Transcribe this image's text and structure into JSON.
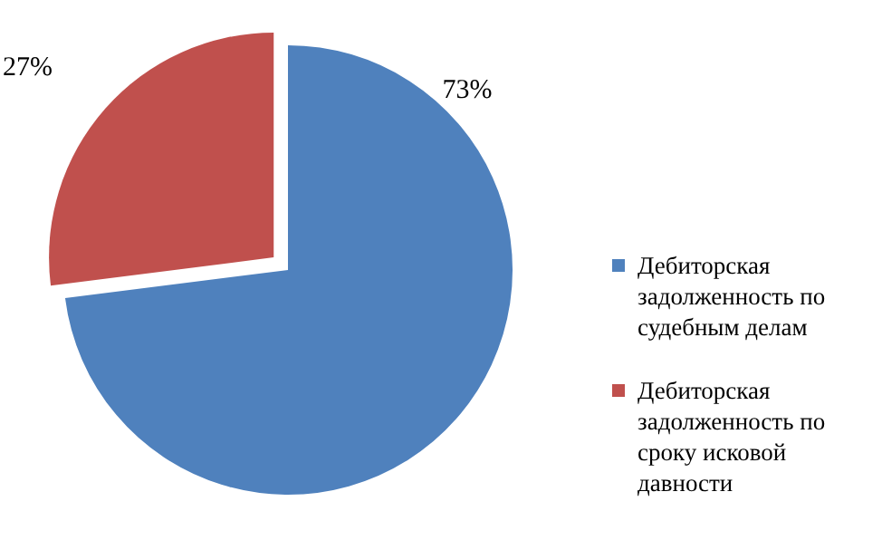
{
  "chart_data": {
    "type": "pie",
    "categories": [
      "Дебиторская задолженность по судебным делам",
      "Дебиторская задолженность по сроку исковой давности"
    ],
    "values": [
      73,
      27
    ],
    "colors": [
      "#4f81bd",
      "#c0504d"
    ],
    "value_labels": [
      "73%",
      "27%"
    ],
    "legend": "right"
  }
}
